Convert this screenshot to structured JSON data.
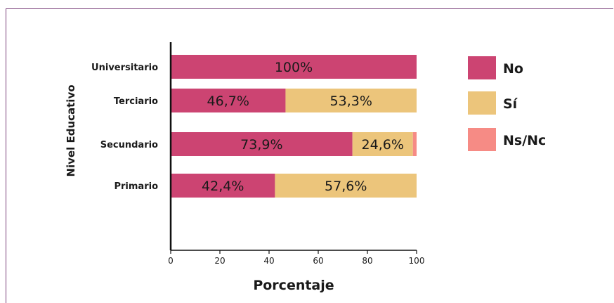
{
  "chart_data": {
    "type": "bar",
    "orientation": "horizontal",
    "stacked": true,
    "categories": [
      "Universitario",
      "Terciario",
      "Secundario",
      "Primario"
    ],
    "series": [
      {
        "name": "No",
        "color": "#cc4472",
        "values": [
          100,
          46.7,
          73.9,
          42.4
        ],
        "labels": [
          "100%",
          "46,7%",
          "73,9%",
          "42,4%"
        ]
      },
      {
        "name": "Sí",
        "color": "#ecc57b",
        "values": [
          0,
          53.3,
          24.6,
          57.6
        ],
        "labels": [
          "",
          "53,3%",
          "24,6%",
          "57,6%"
        ]
      },
      {
        "name": "Ns/Nc",
        "color": "#f68b85",
        "values": [
          0,
          0,
          1.5,
          0
        ],
        "labels": [
          "",
          "",
          "",
          ""
        ]
      }
    ],
    "xlabel": "Porcentaje",
    "ylabel": "Nivel Educativo",
    "xlim": [
      0,
      100
    ],
    "xticks": [
      0,
      20,
      40,
      60,
      80,
      100
    ],
    "legend_position": "right",
    "grid": false
  }
}
